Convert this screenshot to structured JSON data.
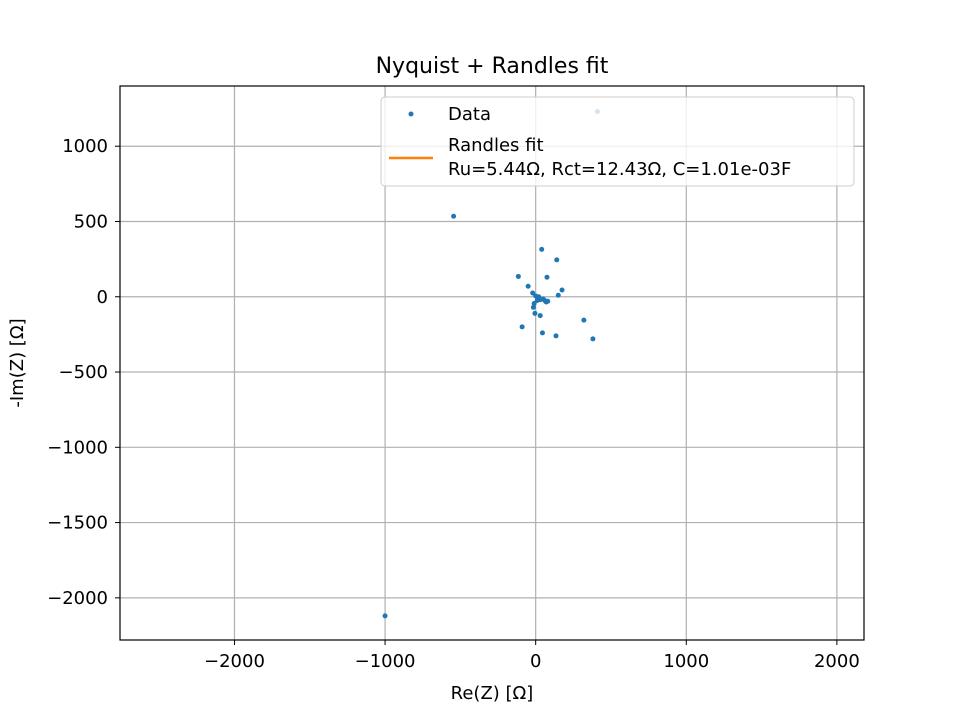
{
  "chart_data": {
    "type": "scatter",
    "title": "Nyquist + Randles fit",
    "xlabel": "Re(Z) [Ω]",
    "ylabel": "-Im(Z) [Ω]",
    "xlim": [
      -2760,
      2180
    ],
    "ylim": [
      -2280,
      1400
    ],
    "xticks": [
      -2000,
      -1000,
      0,
      1000,
      2000
    ],
    "xtick_labels": [
      "−2000",
      "−1000",
      "0",
      "1000",
      "2000"
    ],
    "yticks": [
      -2000,
      -1500,
      -1000,
      -500,
      0,
      500,
      1000
    ],
    "ytick_labels": [
      "−2000",
      "−1500",
      "−1000",
      "−500",
      "0",
      "500",
      "1000"
    ],
    "grid": true,
    "legend_position": "top-right",
    "colors": {
      "data": "#1f77b4",
      "fit": "#ff7f0e",
      "grid": "#b0b0b0"
    },
    "series": [
      {
        "name": "Data",
        "kind": "scatter",
        "x": [
          410,
          -545,
          40,
          140,
          -115,
          -50,
          75,
          -20,
          175,
          150,
          0,
          20,
          50,
          60,
          70,
          80,
          10,
          -10,
          30,
          320,
          -5,
          30,
          380,
          -90,
          45,
          135,
          -1000,
          -15
        ],
        "y": [
          1230,
          535,
          315,
          245,
          135,
          70,
          130,
          25,
          45,
          10,
          5,
          0,
          -15,
          -25,
          -35,
          -30,
          -25,
          -45,
          -20,
          -155,
          -110,
          -125,
          -280,
          -200,
          -240,
          -260,
          -2120,
          -70
        ]
      },
      {
        "name": "Randles fit\nRu=5.44Ω, Rct=12.43Ω, C=1.01e-03F",
        "kind": "line",
        "x": [
          5.44,
          6.0,
          7.5,
          9.5,
          11.7,
          13.9,
          15.9,
          17.3,
          17.87
        ],
        "y": [
          0,
          2.5,
          4.6,
          6.0,
          6.2,
          5.5,
          3.9,
          1.8,
          0
        ]
      }
    ],
    "legend": {
      "entries": [
        {
          "label": "Data",
          "marker": "dot"
        },
        {
          "label_line1": "Randles fit",
          "label_line2": "Ru=5.44Ω, Rct=12.43Ω, C=1.01e-03F",
          "marker": "line"
        }
      ]
    }
  }
}
